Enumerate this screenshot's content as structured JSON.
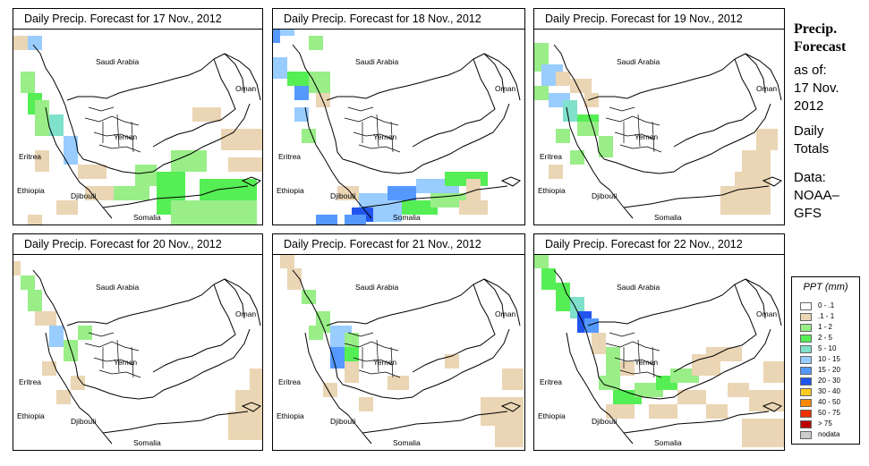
{
  "panels": [
    {
      "title": "Daily Precip. Forecast for  17 Nov., 2012"
    },
    {
      "title": "Daily Precip. Forecast for  18 Nov., 2012"
    },
    {
      "title": "Daily Precip. Forecast for  19 Nov., 2012"
    },
    {
      "title": "Daily Precip. Forecast for  20 Nov., 2012"
    },
    {
      "title": "Daily Precip. Forecast for  21 Nov., 2012"
    },
    {
      "title": "Daily Precip. Forecast for  22 Nov., 2012"
    }
  ],
  "map_labels": {
    "saudi_arabia": "Saudi Arabia",
    "oman": "Oman",
    "yemen": "Yemen",
    "eritrea": "Eritrea",
    "ethiopia": "Ethiopia",
    "djibouti": "Djibouti",
    "somalia": "Somalia"
  },
  "sidebar": {
    "line1": "Precip.",
    "line2": "Forecast",
    "line3": "as of:",
    "line4": "17 Nov.",
    "line5": "2012",
    "line6": "Daily",
    "line7": "Totals",
    "line8": "Data:",
    "line9": "NOAA–",
    "line10": "GFS"
  },
  "legend": {
    "title": "PPT (mm)",
    "items": [
      {
        "label": "0 - .1",
        "color": "#ffffff"
      },
      {
        "label": ".1 - 1",
        "color": "#ead5b4"
      },
      {
        "label": "1 - 2",
        "color": "#99ee88"
      },
      {
        "label": "2 - 5",
        "color": "#55ee55"
      },
      {
        "label": "5 - 10",
        "color": "#7fe0cc"
      },
      {
        "label": "10 - 15",
        "color": "#99ccff"
      },
      {
        "label": "15 - 20",
        "color": "#5599ff"
      },
      {
        "label": "20 - 30",
        "color": "#2255ee"
      },
      {
        "label": "30 - 40",
        "color": "#ffcc22"
      },
      {
        "label": "40 - 50",
        "color": "#ff8800"
      },
      {
        "label": "50 - 75",
        "color": "#ee3300"
      },
      {
        "label": "> 75",
        "color": "#bb0000"
      },
      {
        "label": "nodata",
        "color": "#cccccc"
      }
    ]
  }
}
